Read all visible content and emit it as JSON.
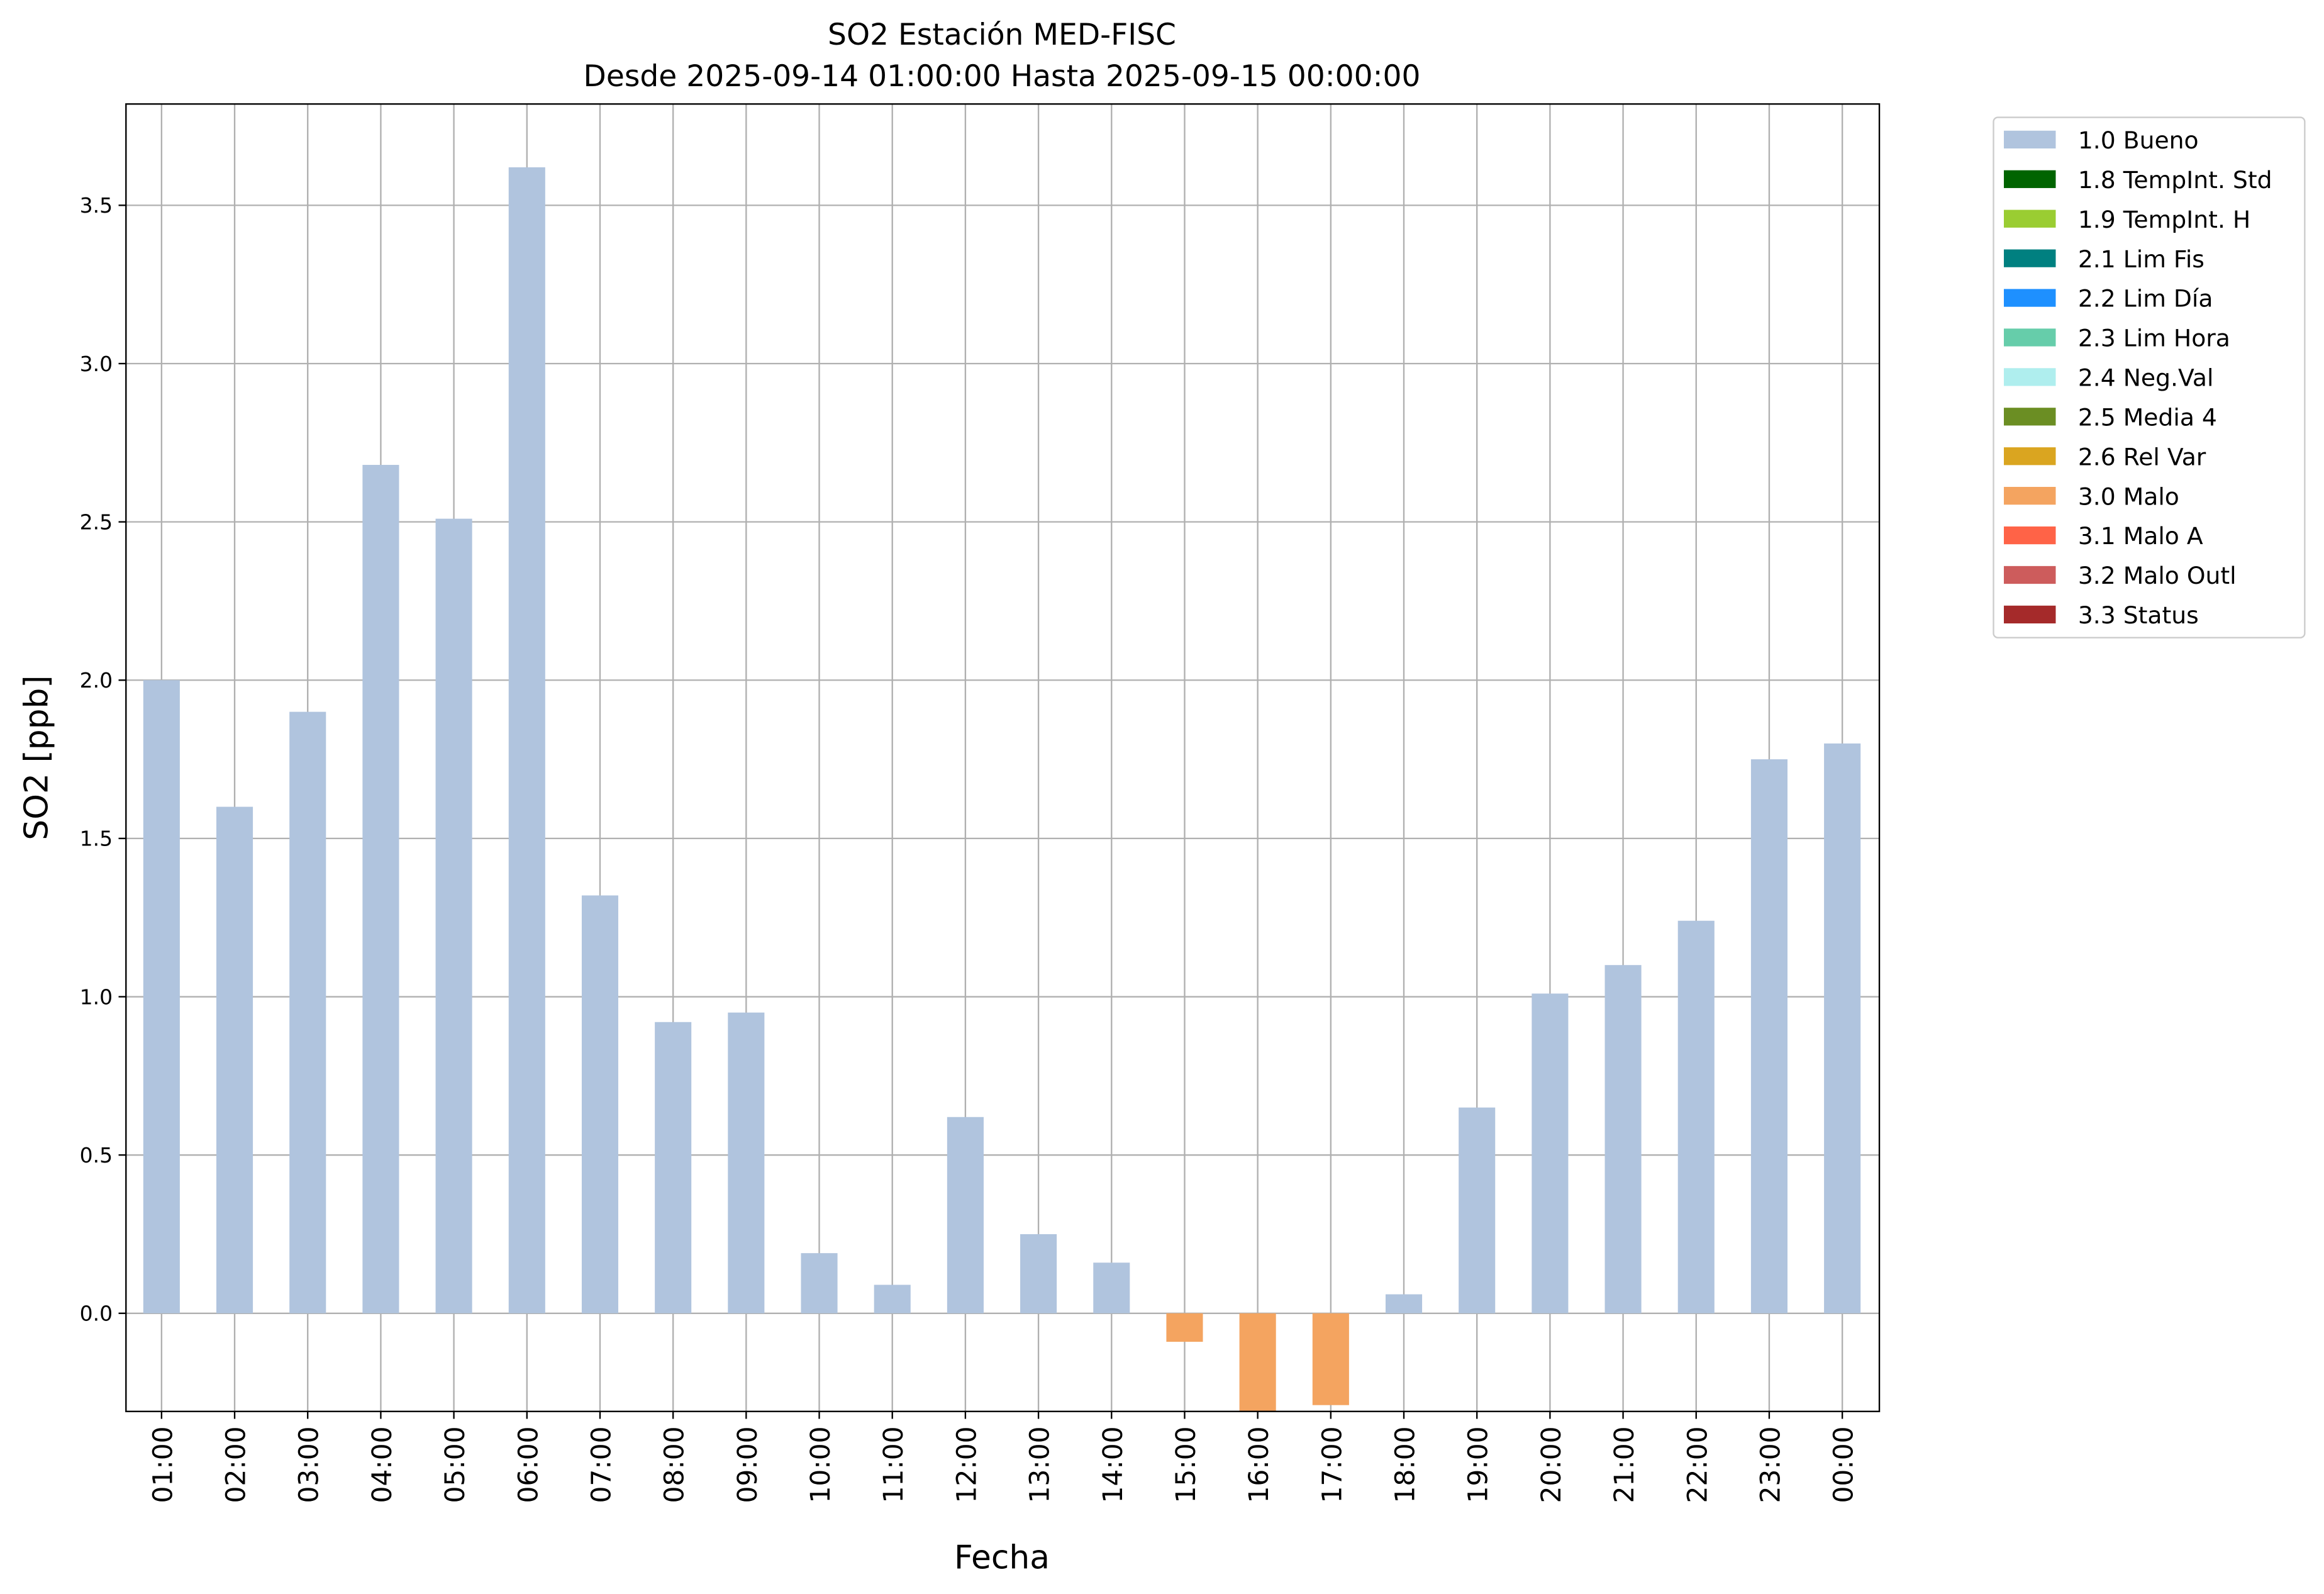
{
  "chart_data": {
    "type": "bar",
    "title": "SO2 Estación MED-FISC",
    "subtitle": "Desde 2025-09-14 01:00:00 Hasta 2025-09-15 00:00:00",
    "xlabel": "Fecha",
    "ylabel": "SO2 [ppb]",
    "ylim": [
      -0.31,
      3.82
    ],
    "yticks": [
      "0.0",
      "0.5",
      "1.0",
      "1.5",
      "2.0",
      "2.5",
      "3.0",
      "3.5"
    ],
    "grid": true,
    "legend_placement": "outside-top-right",
    "categories": [
      "01:00",
      "02:00",
      "03:00",
      "04:00",
      "05:00",
      "06:00",
      "07:00",
      "08:00",
      "09:00",
      "10:00",
      "11:00",
      "12:00",
      "13:00",
      "14:00",
      "15:00",
      "16:00",
      "17:00",
      "18:00",
      "19:00",
      "20:00",
      "21:00",
      "22:00",
      "23:00",
      "00:00"
    ],
    "values": [
      2.0,
      1.6,
      1.9,
      2.68,
      2.51,
      3.62,
      1.32,
      0.92,
      0.95,
      0.19,
      0.09,
      0.62,
      0.25,
      0.16,
      -0.09,
      -0.35,
      -0.29,
      0.06,
      0.65,
      1.01,
      1.1,
      1.24,
      1.75,
      1.8
    ],
    "flags": [
      "1.0 Bueno",
      "1.0 Bueno",
      "1.0 Bueno",
      "1.0 Bueno",
      "1.0 Bueno",
      "1.0 Bueno",
      "1.0 Bueno",
      "1.0 Bueno",
      "1.0 Bueno",
      "1.0 Bueno",
      "1.0 Bueno",
      "1.0 Bueno",
      "1.0 Bueno",
      "1.0 Bueno",
      "3.0 Malo",
      "3.0 Malo",
      "3.0 Malo",
      "1.0 Bueno",
      "1.0 Bueno",
      "1.0 Bueno",
      "1.0 Bueno",
      "1.0 Bueno",
      "1.0 Bueno",
      "1.0 Bueno"
    ],
    "legend": [
      {
        "label": "1.0 Bueno",
        "color": "#b0c4de"
      },
      {
        "label": "1.8 TempInt. Std",
        "color": "#006400"
      },
      {
        "label": "1.9 TempInt. H",
        "color": "#9acd32"
      },
      {
        "label": "2.1 Lim Fis",
        "color": "#008080"
      },
      {
        "label": "2.2 Lim Día",
        "color": "#1e90ff"
      },
      {
        "label": "2.3 Lim Hora",
        "color": "#66cdaa"
      },
      {
        "label": "2.4 Neg.Val",
        "color": "#afeeee"
      },
      {
        "label": "2.5 Media 4",
        "color": "#6b8e23"
      },
      {
        "label": "2.6 Rel Var",
        "color": "#daa520"
      },
      {
        "label": "3.0 Malo",
        "color": "#f4a460"
      },
      {
        "label": "3.1 Malo A",
        "color": "#ff6347"
      },
      {
        "label": "3.2 Malo Outl",
        "color": "#cd5c5c"
      },
      {
        "label": "3.3 Status",
        "color": "#a52a2a"
      }
    ]
  }
}
